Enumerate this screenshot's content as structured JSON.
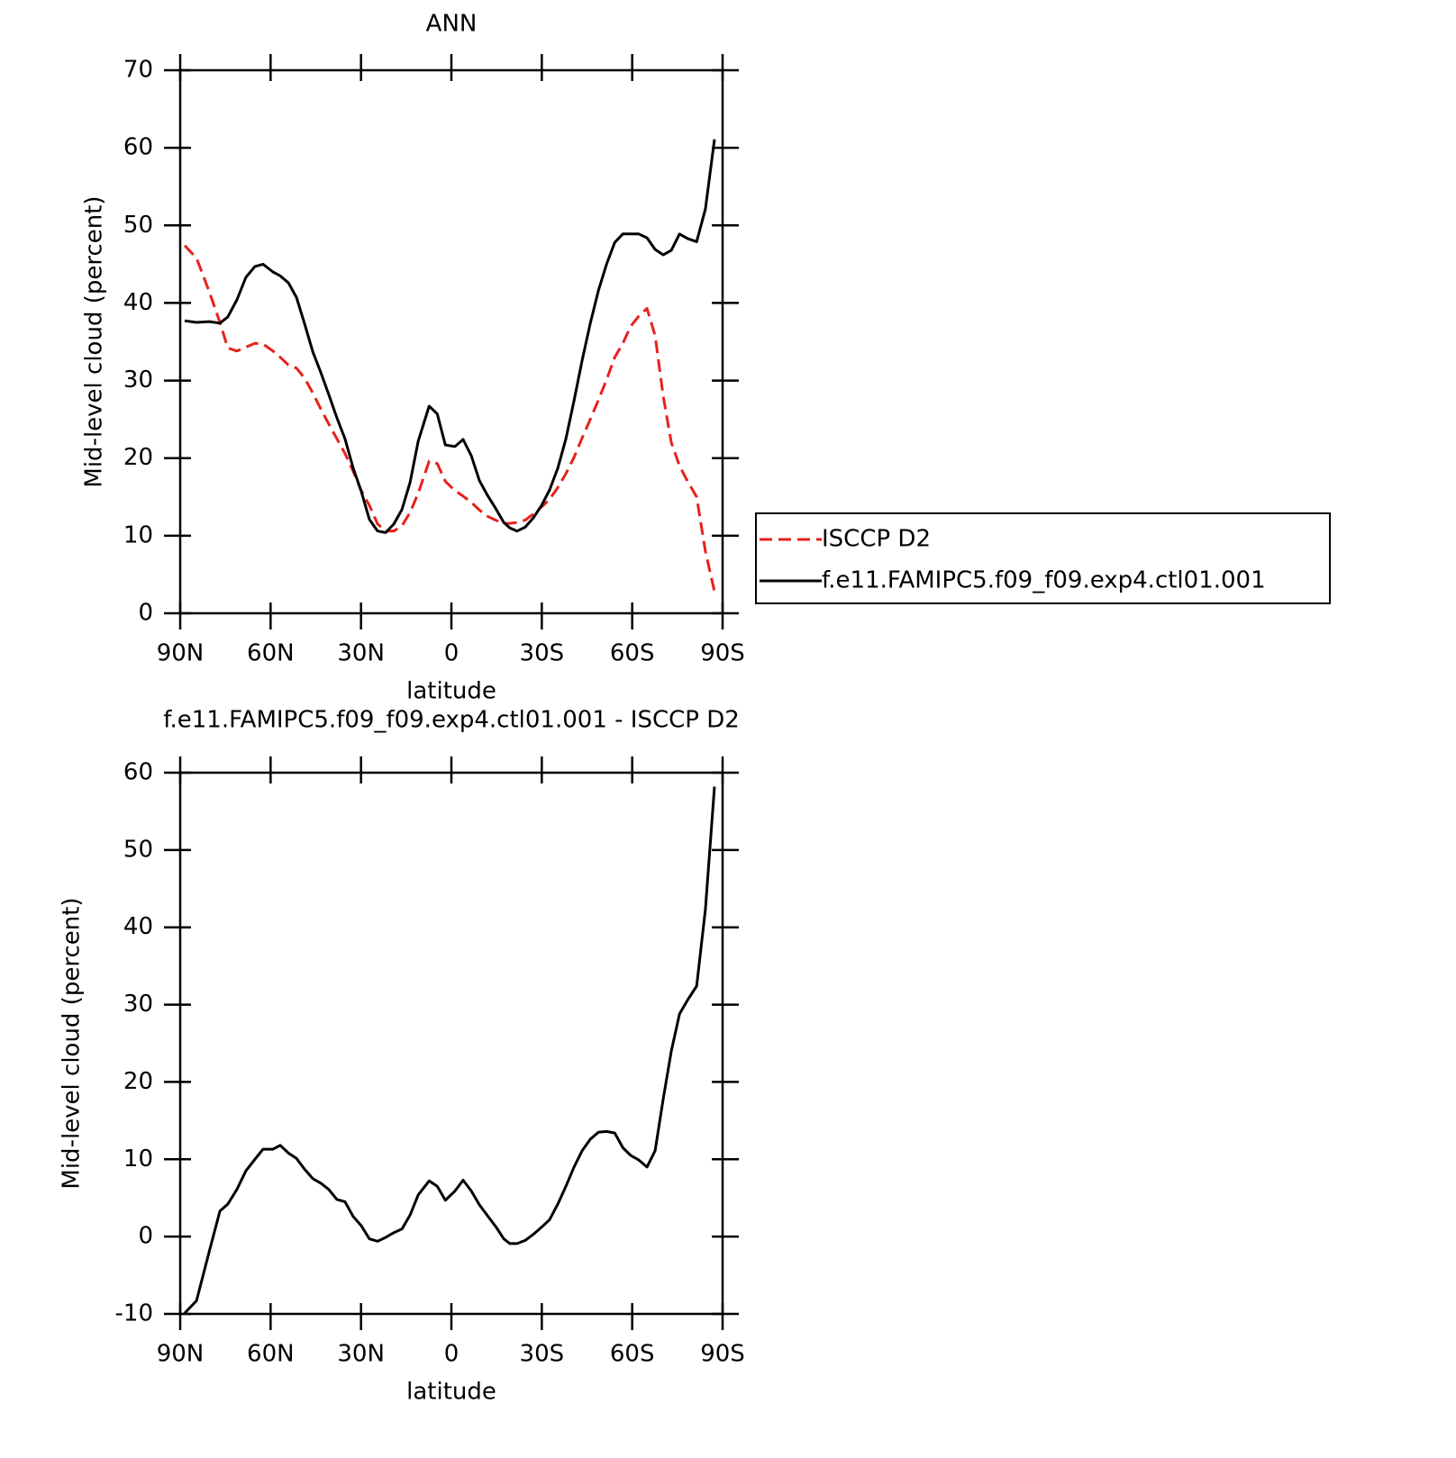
{
  "chart_data": [
    {
      "type": "line",
      "title": "ANN",
      "x_label": "latitude",
      "y_label": "Mid-level cloud (percent)",
      "x": [
        88.5,
        84.6,
        80.4,
        76.8,
        74.2,
        71.2,
        68.2,
        65.2,
        62.5,
        59.2,
        56.8,
        54.1,
        51.4,
        48.7,
        46.0,
        43.3,
        40.7,
        38.0,
        35.3,
        32.6,
        29.9,
        27.2,
        24.5,
        21.8,
        19.1,
        16.4,
        13.7,
        11.0,
        7.4,
        4.7,
        2.0,
        -1.2,
        -3.9,
        -6.6,
        -9.3,
        -12.0,
        -14.7,
        -17.4,
        -19.4,
        -21.8,
        -24.5,
        -27.2,
        -29.9,
        -32.6,
        -35.3,
        -38.0,
        -40.7,
        -43.4,
        -46.1,
        -48.8,
        -51.5,
        -54.2,
        -56.9,
        -59.5,
        -62.2,
        -64.9,
        -67.6,
        -70.3,
        -73.0,
        -75.7,
        -78.4,
        -81.4,
        -84.3,
        -87.3
      ],
      "series": [
        {
          "name": "ISCCP D2",
          "color": "#e8201c",
          "dashed": true,
          "values": [
            47.4,
            45.8,
            41.5,
            37.5,
            34.2,
            33.8,
            34.3,
            34.8,
            34.7,
            33.8,
            33.0,
            32.0,
            31.6,
            30.3,
            28.4,
            26.3,
            24.4,
            22.5,
            20.6,
            18.3,
            15.8,
            13.9,
            11.5,
            10.6,
            10.6,
            11.3,
            13.0,
            15.5,
            19.6,
            19.3,
            17.0,
            15.8,
            15.1,
            14.3,
            13.3,
            12.5,
            12.0,
            11.6,
            11.6,
            11.7,
            12.0,
            12.8,
            13.7,
            14.7,
            16.2,
            18.0,
            20.1,
            22.6,
            25.0,
            27.5,
            30.1,
            33.0,
            34.8,
            37.0,
            38.3,
            39.3,
            35.8,
            28.0,
            22.0,
            19.0,
            17.0,
            15.0,
            8.0,
            2.8
          ]
        },
        {
          "name": "f.e11.FAMIPC5.f09_f09.exp4.ctl01.001",
          "color": "#000000",
          "dashed": false,
          "values": [
            37.7,
            37.5,
            37.6,
            37.4,
            38.2,
            40.4,
            43.3,
            44.7,
            45.0,
            44.0,
            43.5,
            42.6,
            40.7,
            37.3,
            33.7,
            31.0,
            28.2,
            25.2,
            22.5,
            18.7,
            15.7,
            12.1,
            10.6,
            10.4,
            11.5,
            13.4,
            16.9,
            22.2,
            26.7,
            25.7,
            21.7,
            21.5,
            22.4,
            20.3,
            17.1,
            15.2,
            13.5,
            11.7,
            11.0,
            10.6,
            11.1,
            12.3,
            13.9,
            15.9,
            18.7,
            22.5,
            27.4,
            32.6,
            37.4,
            41.6,
            45.0,
            47.8,
            48.9,
            48.9,
            48.9,
            48.4,
            46.9,
            46.2,
            46.8,
            48.9,
            48.3,
            47.9,
            52.1,
            61.1
          ]
        }
      ],
      "xlim": [
        90,
        -90
      ],
      "xticks": [
        {
          "value": 90,
          "label": "90N"
        },
        {
          "value": 60,
          "label": "60N"
        },
        {
          "value": 30,
          "label": "30N"
        },
        0,
        {
          "value": -30,
          "label": "30S"
        },
        {
          "value": -60,
          "label": "60S"
        },
        {
          "value": -90,
          "label": "90S"
        }
      ],
      "ylim": [
        0,
        70
      ],
      "yticks": [
        0,
        10,
        20,
        30,
        40,
        50,
        60,
        70
      ],
      "legend": "right"
    },
    {
      "type": "line",
      "title": "f.e11.FAMIPC5.f09_f09.exp4.ctl01.001 - ISCCP D2",
      "x_label": "latitude",
      "y_label": "Mid-level cloud (percent)",
      "x": [
        88.5,
        84.6,
        80.4,
        76.8,
        74.2,
        71.2,
        68.2,
        65.2,
        62.5,
        59.2,
        56.8,
        54.1,
        51.4,
        48.7,
        46.0,
        43.3,
        40.7,
        38.0,
        35.3,
        32.6,
        29.9,
        27.2,
        24.5,
        21.8,
        19.1,
        16.4,
        13.7,
        11.0,
        7.4,
        4.7,
        2.0,
        -1.2,
        -3.9,
        -6.6,
        -9.3,
        -12.0,
        -14.7,
        -17.4,
        -19.4,
        -21.8,
        -24.5,
        -27.2,
        -29.9,
        -32.6,
        -35.3,
        -38.0,
        -40.7,
        -43.4,
        -46.1,
        -48.8,
        -51.5,
        -54.2,
        -56.9,
        -59.5,
        -62.2,
        -64.9,
        -67.6,
        -70.3,
        -73.0,
        -75.7,
        -78.4,
        -81.4,
        -84.3,
        -87.3
      ],
      "values": [
        -9.9,
        -8.3,
        -2.0,
        3.3,
        4.2,
        6.1,
        8.5,
        10.0,
        11.3,
        11.3,
        11.8,
        10.8,
        10.1,
        8.7,
        7.5,
        6.9,
        6.1,
        4.8,
        4.5,
        2.6,
        1.4,
        -0.3,
        -0.6,
        -0.1,
        0.5,
        1.0,
        2.8,
        5.4,
        7.2,
        6.5,
        4.7,
        5.9,
        7.3,
        5.9,
        4.1,
        2.7,
        1.3,
        -0.3,
        -0.9,
        -0.9,
        -0.5,
        0.3,
        1.2,
        2.2,
        4.2,
        6.5,
        9.0,
        11.1,
        12.6,
        13.5,
        13.6,
        13.4,
        11.5,
        10.5,
        9.9,
        9.0,
        11.1,
        17.8,
        24.0,
        28.8,
        30.6,
        32.4,
        42.3,
        58.2
      ],
      "color": "#000000",
      "xlim": [
        90,
        -90
      ],
      "xticks": [
        {
          "value": 90,
          "label": "90N"
        },
        {
          "value": 60,
          "label": "60N"
        },
        {
          "value": 30,
          "label": "30N"
        },
        0,
        {
          "value": -30,
          "label": "30S"
        },
        {
          "value": -60,
          "label": "60S"
        },
        {
          "value": -90,
          "label": "90S"
        }
      ],
      "ylim": [
        -10,
        60
      ],
      "yticks": [
        -10,
        0,
        10,
        20,
        30,
        40,
        50,
        60
      ]
    }
  ]
}
